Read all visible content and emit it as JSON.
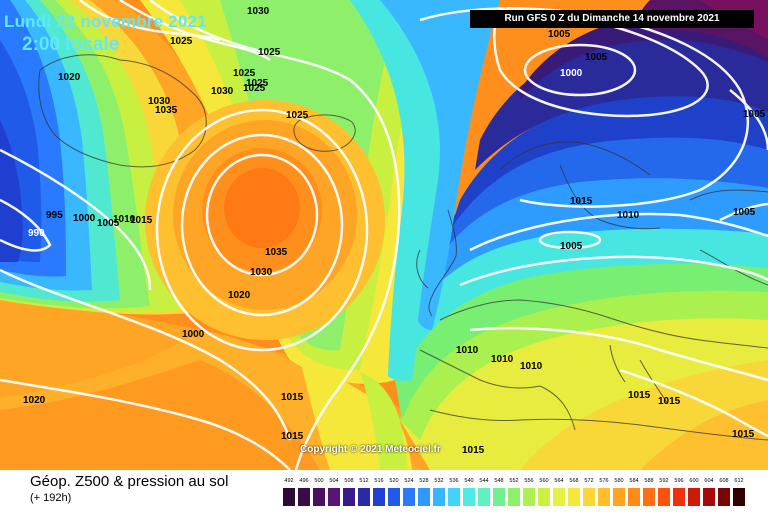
{
  "header": {
    "date_line": "Lundi 22 novembre 2021",
    "time_line": "2:00 locale",
    "run_info": "Run GFS 0 Z du Dimanche 14 novembre 2021"
  },
  "copyright": "Copyright © 2021 Meteociel.fr",
  "footer": {
    "title": "Géop. Z500 & pression au sol",
    "subtitle": "(+ 192h)"
  },
  "legend": {
    "values": [
      "492",
      "496",
      "500",
      "504",
      "508",
      "512",
      "516",
      "520",
      "524",
      "528",
      "532",
      "536",
      "540",
      "544",
      "548",
      "552",
      "556",
      "560",
      "564",
      "568",
      "572",
      "576",
      "580",
      "584",
      "588",
      "592",
      "596",
      "600",
      "604",
      "608",
      "612"
    ],
    "colors": [
      "#2b0a35",
      "#3a0d4a",
      "#4a1060",
      "#5a1474",
      "#3a1a8a",
      "#2a2aa8",
      "#1f3fd0",
      "#1f5ae8",
      "#2a7aff",
      "#2e98ff",
      "#36b6ff",
      "#3fd4ff",
      "#4feae8",
      "#5ff2c0",
      "#72f090",
      "#8ef06a",
      "#aef050",
      "#ccf040",
      "#e6f040",
      "#f6e83a",
      "#fcd634",
      "#ffbe2a",
      "#ffa420",
      "#ff8a18",
      "#ff6e12",
      "#ff500e",
      "#f0300a",
      "#d01808",
      "#a80808",
      "#780606",
      "#300000"
    ]
  },
  "isobars": [
    {
      "label": "1030",
      "color": "black"
    },
    {
      "label": "1025",
      "color": "black"
    },
    {
      "label": "1025",
      "color": "black"
    },
    {
      "label": "1025",
      "color": "black"
    },
    {
      "label": "1020",
      "color": "black"
    },
    {
      "label": "1025",
      "color": "black"
    },
    {
      "label": "1030",
      "color": "black"
    },
    {
      "label": "1035",
      "color": "black"
    },
    {
      "label": "1030",
      "color": "black"
    },
    {
      "label": "1025",
      "color": "black"
    },
    {
      "label": "1025",
      "color": "black"
    },
    {
      "label": "995",
      "color": "black"
    },
    {
      "label": "990",
      "color": "white"
    },
    {
      "label": "1000",
      "color": "black"
    },
    {
      "label": "1005",
      "color": "black"
    },
    {
      "label": "1010",
      "color": "black"
    },
    {
      "label": "1015",
      "color": "black"
    },
    {
      "label": "1035",
      "color": "black"
    },
    {
      "label": "1030",
      "color": "black"
    },
    {
      "label": "1020",
      "color": "black"
    },
    {
      "label": "1000",
      "color": "black"
    },
    {
      "label": "1020",
      "color": "black"
    },
    {
      "label": "1015",
      "color": "black"
    },
    {
      "label": "1015",
      "color": "black"
    },
    {
      "label": "1015",
      "color": "black"
    },
    {
      "label": "1005",
      "color": "black"
    },
    {
      "label": "1005",
      "color": "black"
    },
    {
      "label": "1000",
      "color": "black"
    },
    {
      "label": "1005",
      "color": "black"
    },
    {
      "label": "1015",
      "color": "black"
    },
    {
      "label": "1010",
      "color": "black"
    },
    {
      "label": "1005",
      "color": "black"
    },
    {
      "label": "1005",
      "color": "black"
    },
    {
      "label": "1010",
      "color": "black"
    },
    {
      "label": "1010",
      "color": "black"
    },
    {
      "label": "1010",
      "color": "black"
    },
    {
      "label": "1015",
      "color": "black"
    },
    {
      "label": "1015",
      "color": "black"
    },
    {
      "label": "1015",
      "color": "black"
    }
  ]
}
